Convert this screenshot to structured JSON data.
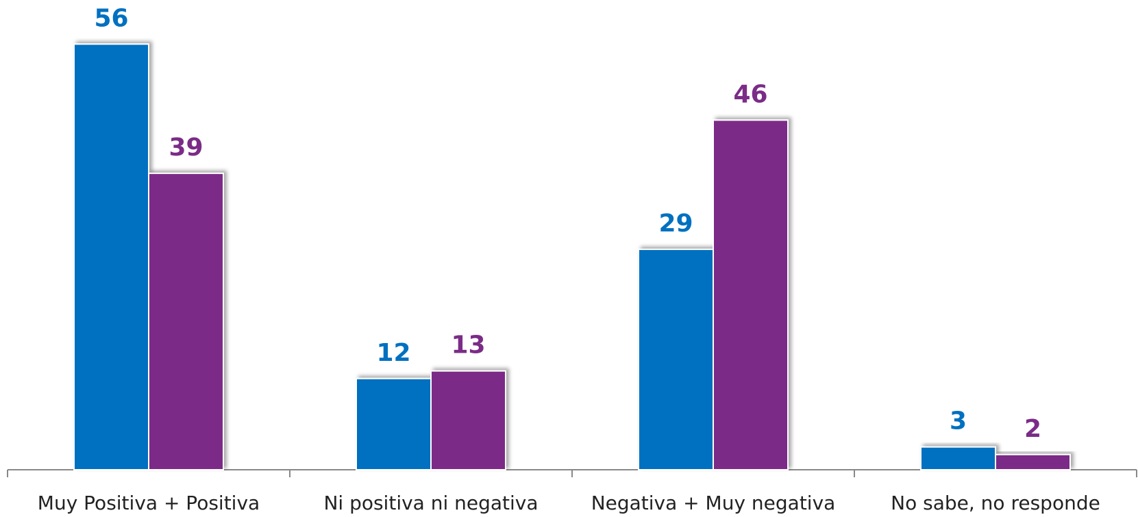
{
  "chart_data": {
    "type": "bar",
    "categories": [
      "Muy Positiva + Positiva",
      "Ni positiva ni negativa",
      "Negativa + Muy negativa",
      "No sabe, no responde"
    ],
    "series": [
      {
        "color": "#0070c0",
        "values": [
          56,
          12,
          29,
          3
        ]
      },
      {
        "color": "#7b2c87",
        "values": [
          39,
          13,
          46,
          2
        ]
      }
    ],
    "ylim": [
      0,
      60
    ]
  }
}
